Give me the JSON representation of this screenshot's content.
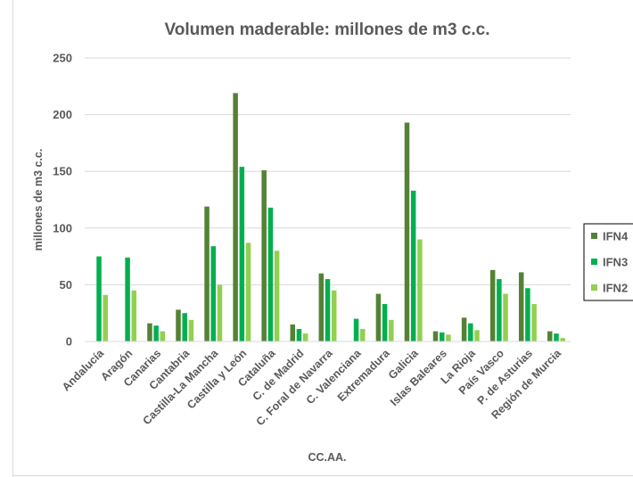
{
  "chart_data": {
    "type": "bar",
    "title": "Volumen maderable: millones de m3 c.c.",
    "xlabel": "CC.AA.",
    "ylabel": "millones de m3 c.c.",
    "ylim": [
      0,
      250
    ],
    "yticks": [
      0,
      50,
      100,
      150,
      200,
      250
    ],
    "grid": true,
    "legend_position": "right",
    "categories": [
      "Andalucía",
      "Aragón",
      "Canarias",
      "Cantabria",
      "Castilla-La Mancha",
      "Castilla y León",
      "Cataluña",
      "C. de Madrid",
      "C. Foral de Navarra",
      "C. Valenciana",
      "Extremadura",
      "Galicia",
      "Islas Baleares",
      "La Rioja",
      "País Vasco",
      "P. de Asturias",
      "Región de Murcia"
    ],
    "series": [
      {
        "name": "IFN4",
        "color": "#548235",
        "values": [
          null,
          null,
          16,
          28,
          119,
          219,
          151,
          15,
          60,
          null,
          42,
          193,
          9,
          21,
          63,
          61,
          9
        ]
      },
      {
        "name": "IFN3",
        "color": "#00b050",
        "values": [
          75,
          74,
          14,
          25,
          84,
          154,
          118,
          11,
          55,
          20,
          33,
          133,
          8,
          16,
          55,
          47,
          7
        ]
      },
      {
        "name": "IFN2",
        "color": "#92d050",
        "values": [
          41,
          45,
          9,
          19,
          50,
          87,
          80,
          7,
          45,
          11,
          19,
          90,
          6,
          10,
          42,
          33,
          3
        ]
      }
    ]
  }
}
